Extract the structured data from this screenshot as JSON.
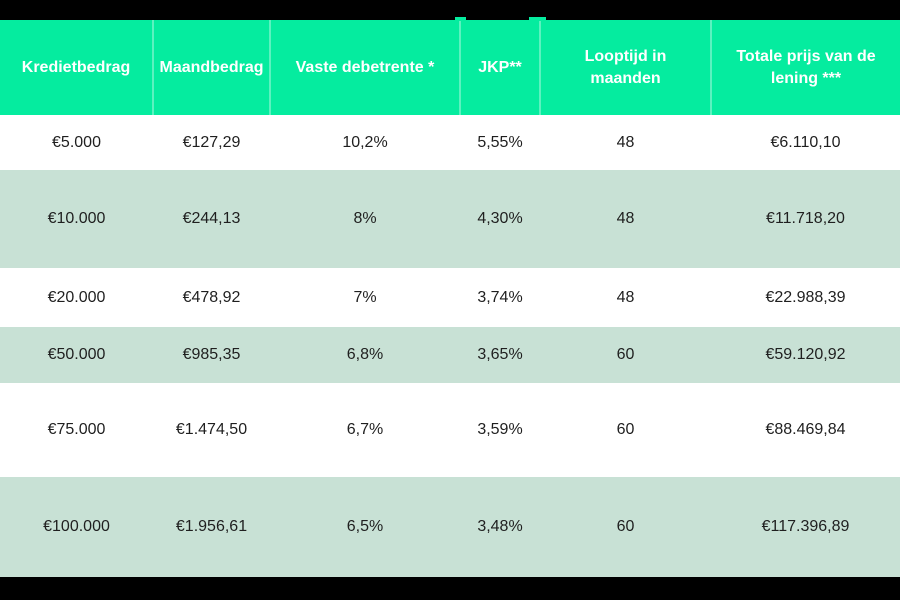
{
  "theme": {
    "bar": "#000000",
    "header-bg": "#05EC9F",
    "header-text": "#FFFFFF",
    "row-bg": "#FFFFFF",
    "row-alt": "#C8E1D5",
    "text": "#1F1F1F"
  },
  "chart_data": {
    "type": "table",
    "columns": [
      "Kredietbedrag",
      "Maandbedrag",
      "Vaste debetrente *",
      "JKP**",
      "Looptijd in maanden",
      "Totale prijs van de lening ***"
    ],
    "rows": [
      [
        "€5.000",
        "€127,29",
        "10,2%",
        "5,55%",
        "48",
        "€6.110,10"
      ],
      [
        "€10.000",
        "€244,13",
        "8%",
        "4,30%",
        "48",
        "€11.718,20"
      ],
      [
        "€20.000",
        "€478,92",
        "7%",
        "3,74%",
        "48",
        "€22.988,39"
      ],
      [
        "€50.000",
        "€985,35",
        "6,8%",
        "3,65%",
        "60",
        "€59.120,92"
      ],
      [
        "€75.000",
        "€1.474,50",
        "6,7%",
        "3,59%",
        "60",
        "€88.469,84"
      ],
      [
        "€100.000",
        "€1.956,61",
        "6,5%",
        "3,48%",
        "60",
        "€117.396,89"
      ]
    ]
  }
}
